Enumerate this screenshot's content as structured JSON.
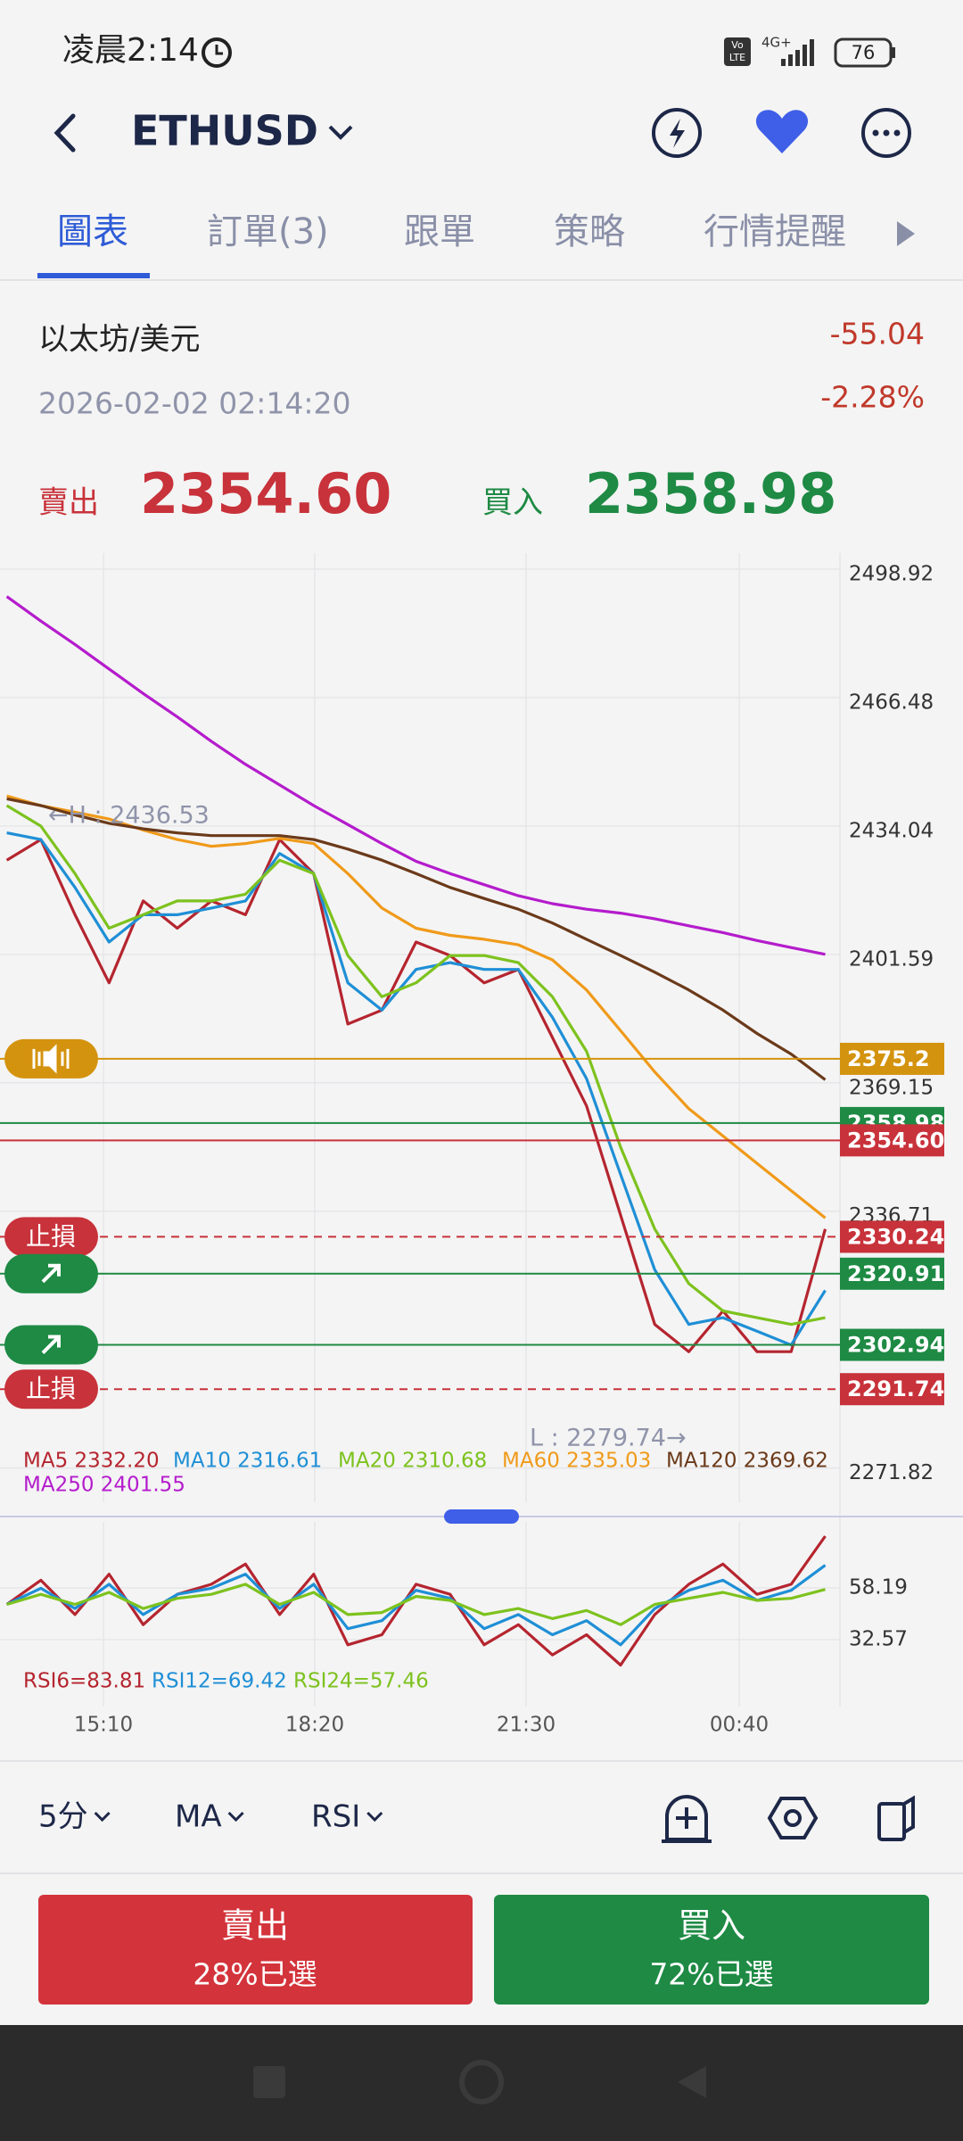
{
  "status_bar": {
    "time": "凌晨2:14",
    "volte": [
      "Vo",
      "LTE"
    ],
    "network": "4G+",
    "battery": "76"
  },
  "header": {
    "symbol": "ETHUSD"
  },
  "tabs": [
    "圖表",
    "訂單(3)",
    "跟單",
    "策略",
    "行情提醒"
  ],
  "quote": {
    "name": "以太坊/美元",
    "datetime": "2026-02-02 02:14:20",
    "change": "-55.04",
    "change_pct": "-2.28%",
    "sell_label": "賣出",
    "sell_price": "2354.60",
    "buy_label": "買入",
    "buy_price": "2358.98"
  },
  "chart_data": [
    {
      "type": "line",
      "yticks": [
        2498.92,
        2466.48,
        2434.04,
        2401.59,
        2369.15,
        2336.71,
        2271.82
      ],
      "series": [
        {
          "name": "MA5 2332.20",
          "color": "#b5252f",
          "values": [
            2425.4,
            2430.6,
            2411.6,
            2394.4,
            2415.1,
            2408.2,
            2415.1,
            2411.6,
            2430.6,
            2422.0,
            2384.0,
            2387.5,
            2404.7,
            2401.3,
            2394.4,
            2397.8,
            2380.6,
            2363.3,
            2335.7,
            2308.1,
            2301.2,
            2311.5,
            2301.2,
            2301.2,
            2332.2
          ]
        },
        {
          "name": "MA10 2316.61",
          "color": "#1f8fd6",
          "values": [
            2432.3,
            2430.6,
            2418.5,
            2404.7,
            2411.6,
            2411.6,
            2413.3,
            2415.1,
            2427.1,
            2422.0,
            2394.4,
            2387.5,
            2397.8,
            2399.5,
            2397.8,
            2397.8,
            2385.7,
            2370.2,
            2346.0,
            2321.9,
            2308.1,
            2309.8,
            2306.4,
            2302.9,
            2316.7
          ]
        },
        {
          "name": "MA20 2310.68",
          "color": "#7dc21e",
          "values": [
            2439.2,
            2434.0,
            2422.0,
            2408.2,
            2411.6,
            2415.1,
            2415.1,
            2416.8,
            2425.4,
            2422.0,
            2401.3,
            2390.9,
            2394.4,
            2401.3,
            2401.3,
            2399.5,
            2390.9,
            2377.1,
            2352.9,
            2332.2,
            2318.4,
            2311.5,
            2309.8,
            2308.1,
            2309.8
          ]
        },
        {
          "name": "MA60 2335.03",
          "color": "#f09a1a",
          "values": [
            2441.6,
            2439.2,
            2437.5,
            2435.8,
            2433.0,
            2430.6,
            2428.9,
            2429.6,
            2430.9,
            2429.6,
            2422.0,
            2413.3,
            2408.2,
            2406.4,
            2405.4,
            2404.0,
            2400.2,
            2392.6,
            2382.3,
            2371.9,
            2362.6,
            2355.7,
            2348.8,
            2341.9,
            2335.0
          ]
        },
        {
          "name": "MA120 2369.62",
          "color": "#6b3a1a",
          "values": [
            2440.9,
            2439.2,
            2436.8,
            2434.7,
            2433.3,
            2432.3,
            2431.6,
            2431.6,
            2431.6,
            2430.6,
            2428.2,
            2425.4,
            2422.0,
            2418.5,
            2415.7,
            2413.0,
            2409.5,
            2405.4,
            2401.3,
            2397.1,
            2392.6,
            2387.5,
            2381.6,
            2376.4,
            2369.9
          ]
        },
        {
          "name": "MA250 2401.55",
          "color": "#b41ccc",
          "values": [
            2492.0,
            2485.8,
            2479.9,
            2473.7,
            2467.5,
            2461.6,
            2455.4,
            2449.6,
            2444.4,
            2439.2,
            2434.4,
            2429.6,
            2425.1,
            2422.0,
            2419.2,
            2416.4,
            2414.4,
            2413.0,
            2412.0,
            2410.6,
            2408.8,
            2407.1,
            2405.1,
            2403.3,
            2401.6
          ]
        }
      ],
      "price_lines": [
        {
          "value": 2375.2,
          "color": "#d4930e",
          "marker": "sound"
        },
        {
          "value": 2358.98,
          "color": "#1e8a44"
        },
        {
          "value": 2354.6,
          "label": "2354.60",
          "color": "#c8323a"
        },
        {
          "value": 2330.24,
          "color": "#c8323a",
          "dash": true,
          "tag": "止損"
        },
        {
          "value": 2320.91,
          "color": "#1e8a44",
          "marker": "arrow"
        },
        {
          "value": 2302.94,
          "color": "#1e8a44",
          "marker": "arrow"
        },
        {
          "value": 2291.74,
          "color": "#c8323a",
          "dash": true,
          "tag": "止損"
        }
      ],
      "annotations": [
        "←H : 2436.53",
        "L : 2279.74→"
      ]
    },
    {
      "type": "line",
      "yticks": [
        58.19,
        32.57
      ],
      "series": [
        {
          "name": "RSI6=83.81",
          "color": "#b5252f",
          "values": [
            50,
            62,
            45,
            65,
            40,
            55,
            60,
            70,
            45,
            65,
            30,
            35,
            60,
            55,
            30,
            40,
            25,
            35,
            20,
            45,
            60,
            70,
            55,
            60,
            83.81
          ]
        },
        {
          "name": "RSI12=69.42",
          "color": "#1f8fd6",
          "values": [
            50,
            58,
            48,
            60,
            45,
            55,
            58,
            65,
            48,
            60,
            38,
            42,
            57,
            53,
            38,
            45,
            35,
            42,
            30,
            48,
            57,
            62,
            52,
            57,
            69.42
          ]
        },
        {
          "name": "RSI24=57.46",
          "color": "#7dc21e",
          "values": [
            50,
            55,
            50,
            56,
            48,
            53,
            55,
            60,
            50,
            56,
            45,
            46,
            54,
            52,
            45,
            48,
            43,
            47,
            40,
            50,
            53,
            56,
            52,
            53,
            57.46
          ]
        }
      ],
      "x_labels": [
        "15:10",
        "18:20",
        "21:30",
        "00:40"
      ]
    }
  ],
  "toolbar": [
    "5分",
    "MA",
    "RSI"
  ],
  "actions": {
    "sell": {
      "label": "賣出",
      "sub": "28%已選"
    },
    "buy": {
      "label": "買入",
      "sub": "72%已選"
    }
  }
}
